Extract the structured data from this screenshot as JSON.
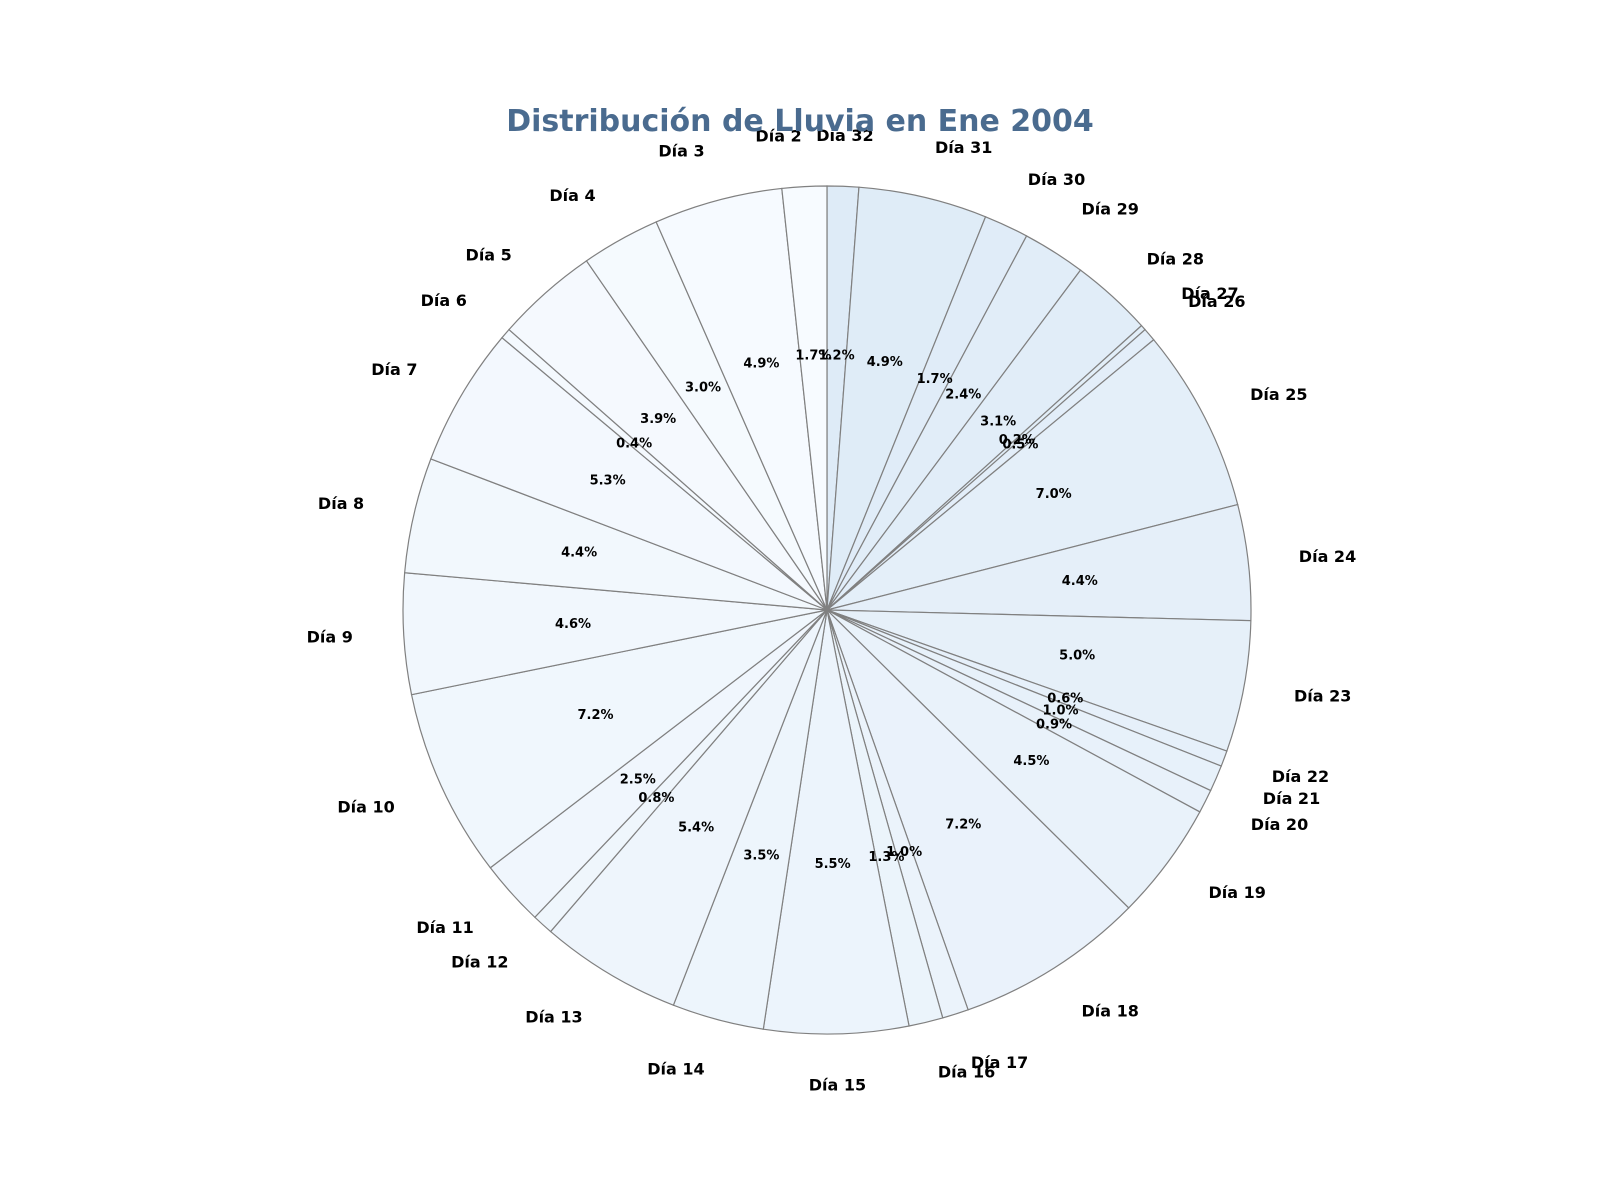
{
  "chart_data": {
    "type": "pie",
    "title": "Distribución de Lluvia en Ene 2004",
    "start": "top",
    "direction": "clockwise",
    "edge_color": "#808080",
    "color_range": [
      "#f7fbff",
      "#deebf7"
    ],
    "slices": [
      {
        "label": "Día 32",
        "value": 1.2,
        "pct_label": "1.2%"
      },
      {
        "label": "Día 31",
        "value": 4.9,
        "pct_label": "4.9%"
      },
      {
        "label": "Día 30",
        "value": 1.7,
        "pct_label": "1.7%"
      },
      {
        "label": "Día 29",
        "value": 2.4,
        "pct_label": "2.4%"
      },
      {
        "label": "Día 28",
        "value": 3.1,
        "pct_label": "3.1%"
      },
      {
        "label": "Día 27",
        "value": 0.2,
        "pct_label": "0.2%"
      },
      {
        "label": "Día 26",
        "value": 0.5,
        "pct_label": "0.5%"
      },
      {
        "label": "Día 25",
        "value": 7.0,
        "pct_label": "7.0%"
      },
      {
        "label": "Día 24",
        "value": 4.4,
        "pct_label": "4.4%"
      },
      {
        "label": "Día 23",
        "value": 5.0,
        "pct_label": "5.0%"
      },
      {
        "label": "Día 22",
        "value": 0.6,
        "pct_label": "0.6%"
      },
      {
        "label": "Día 21",
        "value": 1.0,
        "pct_label": "1.0%"
      },
      {
        "label": "Día 20",
        "value": 0.9,
        "pct_label": "0.9%"
      },
      {
        "label": "Día 19",
        "value": 4.5,
        "pct_label": "4.5%"
      },
      {
        "label": "Día 18",
        "value": 7.2,
        "pct_label": "7.2%"
      },
      {
        "label": "Día 17",
        "value": 1.0,
        "pct_label": "1.0%"
      },
      {
        "label": "Día 16",
        "value": 1.3,
        "pct_label": "1.3%"
      },
      {
        "label": "Día 15",
        "value": 5.5,
        "pct_label": "5.5%"
      },
      {
        "label": "Día 14",
        "value": 3.5,
        "pct_label": "3.5%"
      },
      {
        "label": "Día 13",
        "value": 5.4,
        "pct_label": "5.4%"
      },
      {
        "label": "Día 12",
        "value": 0.8,
        "pct_label": "0.8%"
      },
      {
        "label": "Día 11",
        "value": 2.5,
        "pct_label": "2.5%"
      },
      {
        "label": "Día 10",
        "value": 7.2,
        "pct_label": "7.2%"
      },
      {
        "label": "Día 9",
        "value": 4.6,
        "pct_label": "4.6%"
      },
      {
        "label": "Día 8",
        "value": 4.4,
        "pct_label": "4.4%"
      },
      {
        "label": "Día 7",
        "value": 5.3,
        "pct_label": "5.3%"
      },
      {
        "label": "Día 6",
        "value": 0.4,
        "pct_label": "0.4%"
      },
      {
        "label": "Día 5",
        "value": 3.9,
        "pct_label": "3.9%"
      },
      {
        "label": "Día 4",
        "value": 3.0,
        "pct_label": "3.0%"
      },
      {
        "label": "Día 3",
        "value": 4.9,
        "pct_label": "4.9%"
      },
      {
        "label": "Día 2",
        "value": 1.7,
        "pct_label": "1.7%"
      }
    ]
  }
}
